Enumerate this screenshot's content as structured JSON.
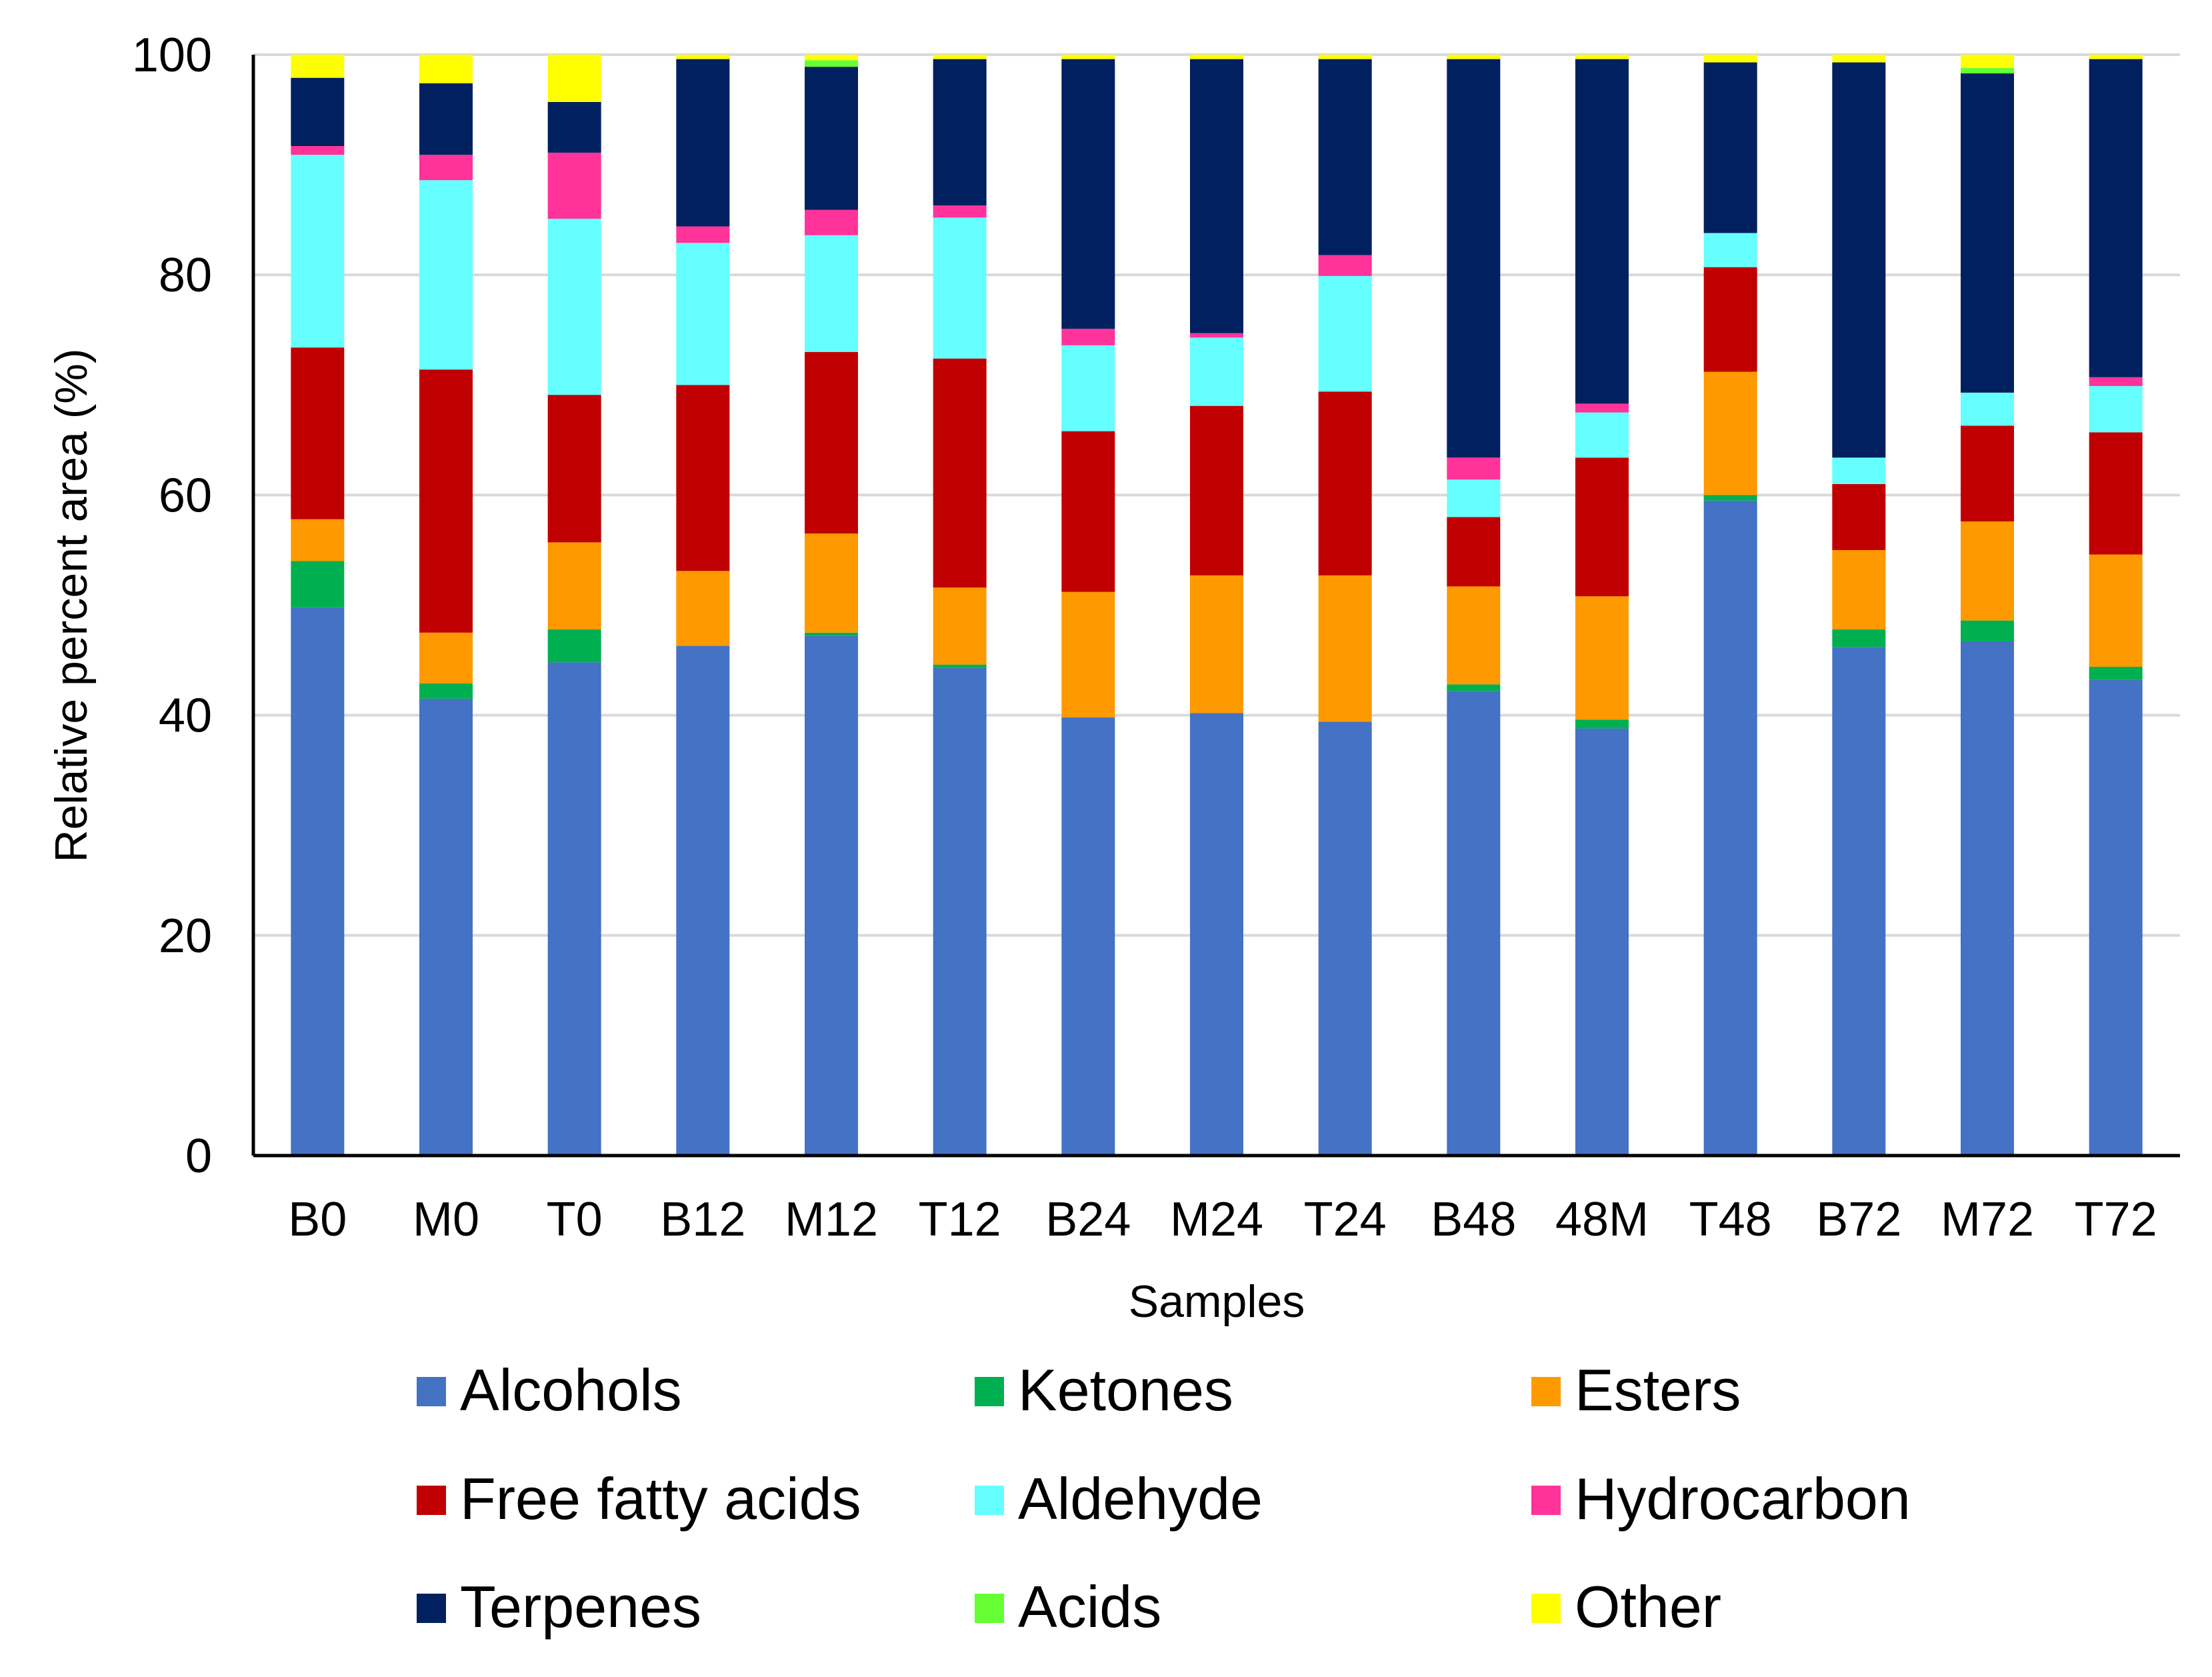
{
  "chart_data": {
    "type": "bar",
    "stacked": true,
    "xlabel": "Samples",
    "ylabel": "Relative  percent  area  (%)",
    "ylim": [
      0,
      100
    ],
    "yticks": [
      0,
      20,
      40,
      60,
      80,
      100
    ],
    "ytick_labels": [
      "0",
      "20",
      "40",
      "60",
      "80",
      "100"
    ],
    "grid": true,
    "legend_position": "bottom",
    "categories": [
      "B0",
      "M0",
      "T0",
      "B12",
      "M12",
      "T12",
      "B24",
      "M24",
      "T24",
      "B48",
      "48M",
      "T48",
      "B72",
      "M72",
      "T72"
    ],
    "series": [
      {
        "name": "Alcohols",
        "color": "#4472C4",
        "values": [
          49.8,
          41.5,
          44.8,
          46.3,
          47.2,
          44.3,
          39.8,
          40.2,
          39.4,
          42.2,
          38.8,
          59.5,
          46.2,
          46.7,
          43.2
        ]
      },
      {
        "name": "Ketones",
        "color": "#00B050",
        "values": [
          4.2,
          1.4,
          3.0,
          0.0,
          0.3,
          0.3,
          0.0,
          0.0,
          0.0,
          0.6,
          0.8,
          0.5,
          1.6,
          1.9,
          1.2
        ]
      },
      {
        "name": "Esters",
        "color": "#FF9900",
        "values": [
          3.8,
          4.6,
          7.9,
          6.8,
          9.0,
          7.0,
          11.4,
          12.5,
          13.3,
          8.9,
          11.2,
          11.2,
          7.2,
          9.0,
          10.2
        ]
      },
      {
        "name": "Free fatty acids",
        "color": "#C00000",
        "values": [
          15.6,
          23.9,
          13.4,
          16.9,
          16.5,
          20.8,
          14.6,
          15.4,
          16.7,
          6.3,
          12.6,
          9.5,
          6.0,
          8.7,
          11.1
        ]
      },
      {
        "name": "Aldehyde",
        "color": "#66FFFF",
        "values": [
          17.5,
          17.2,
          16.0,
          12.9,
          10.6,
          12.8,
          7.8,
          6.2,
          10.5,
          3.4,
          4.1,
          3.1,
          2.4,
          3.0,
          4.2
        ]
      },
      {
        "name": "Hydrocarbon",
        "color": "#FF3399",
        "values": [
          0.8,
          2.3,
          6.0,
          1.5,
          2.3,
          1.1,
          1.5,
          0.4,
          1.9,
          2.0,
          0.8,
          0.0,
          0.0,
          0.0,
          0.8
        ]
      },
      {
        "name": "Terpenes",
        "color": "#002060",
        "values": [
          6.2,
          6.5,
          4.6,
          15.2,
          13.0,
          13.3,
          24.5,
          24.9,
          17.8,
          36.2,
          31.3,
          15.5,
          35.9,
          29.0,
          28.9
        ]
      },
      {
        "name": "Acids",
        "color": "#66FF33",
        "values": [
          0.0,
          0.0,
          0.0,
          0.0,
          0.6,
          0.0,
          0.0,
          0.0,
          0.0,
          0.0,
          0.0,
          0.0,
          0.0,
          0.5,
          0.0
        ]
      },
      {
        "name": "Other",
        "color": "#FFFF00",
        "values": [
          2.1,
          2.6,
          4.3,
          0.4,
          0.5,
          0.4,
          0.4,
          0.4,
          0.4,
          0.4,
          0.4,
          0.7,
          0.7,
          1.2,
          0.4
        ]
      }
    ]
  }
}
